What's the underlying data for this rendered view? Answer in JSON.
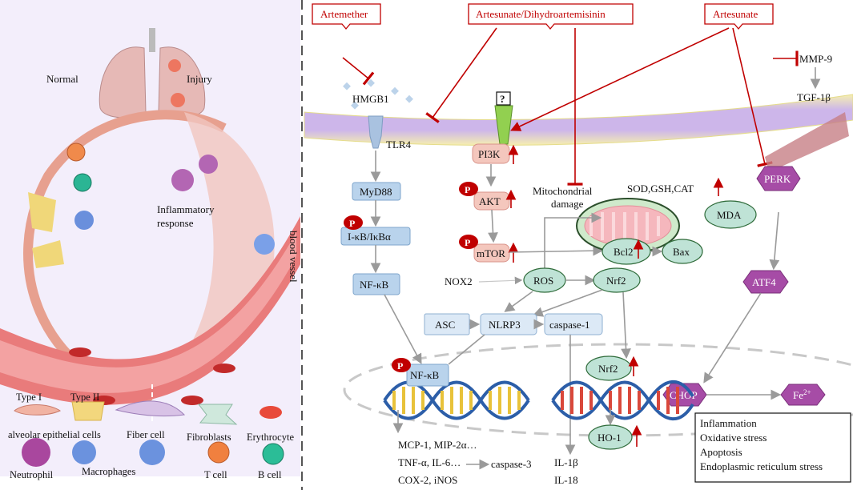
{
  "left_panel": {
    "normal_label": "Normal",
    "injury_label": "Injury",
    "inflammatory_line1": "Inflammatory",
    "inflammatory_line2": "response",
    "blood_vessel_label": "blood vessel",
    "legend": {
      "type1": "Type I",
      "type2": "Type II",
      "alveolar": "alveolar epithelial cells",
      "fiber": "Fiber cell",
      "fibroblasts": "Fibroblasts",
      "erythrocyte": "Erythrocyte",
      "neutrophil": "Neutrophil",
      "macrophages": "Macrophages",
      "tcell": "T cell",
      "bcell": "B cell"
    }
  },
  "drugs": {
    "artemether": "Artemether",
    "artesunate_dha": "Artesunate/Dihydroartemisinin",
    "artesunate": "Artesunate"
  },
  "nodes": {
    "hmgb1": "HMGB1",
    "tlr4": "TLR4",
    "myd88": "MyD88",
    "ikb": "I-κB/IκBα",
    "nfkb": "NF-κB",
    "nfkb_nuclear": "NF-κB",
    "pi3k": "PI3K",
    "akt": "AKT",
    "mtor": "mTOR",
    "p": "P",
    "unknown_receptor": "?",
    "mito_damage_line1": "Mitochondrial",
    "mito_damage_line2": "damage",
    "sod": "SOD,GSH,CAT",
    "mda": "MDA",
    "bcl2": "Bcl2",
    "bax": "Bax",
    "nox2": "NOX2",
    "ros": "ROS",
    "nrf2": "Nrf2",
    "nrf2_nuclear": "Nrf2",
    "asc": "ASC",
    "nlrp3": "NLRP3",
    "caspase1": "caspase-1",
    "mmp9": "MMP-9",
    "tgf": "TGF-1β",
    "perk": "PERK",
    "atf4": "ATF4",
    "chop": "CHOP",
    "fe": "Fe",
    "fe_sup": "2+",
    "ho1": "HO-1"
  },
  "outputs": {
    "line1": "MCP-1, MIP-2α…",
    "line2": "TNF-α, IL-6…",
    "line3": "COX-2, iNOS",
    "caspase3": "caspase-3",
    "il1b": "IL-1β",
    "il18": "IL-18"
  },
  "summary_box": [
    "Inflammation",
    "Oxidative stress",
    "Apoptosis",
    "Endoplasmic reticulum stress"
  ],
  "colors": {
    "inhibition_red": "#c00000",
    "left_bg": "#f3eefb",
    "vessel": "#e97b7b"
  }
}
